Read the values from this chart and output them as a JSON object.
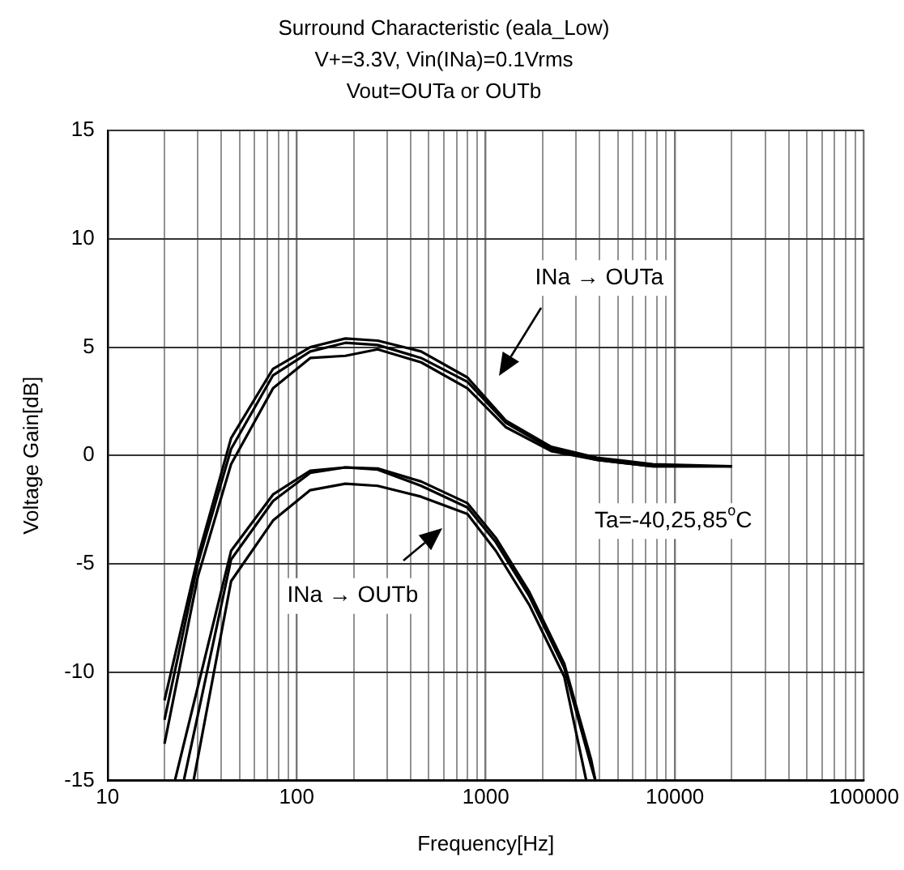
{
  "chart_data": {
    "type": "line",
    "title": "Surround Characteristic (eala_Low)\nV+=3.3V, Vin(INa)=0.1Vrms\nVout=OUTa or OUTb",
    "xlabel": "Frequency[Hz]",
    "ylabel": "Voltage Gain[dB]",
    "log": "x",
    "grid": true,
    "legend": false,
    "marker": "none",
    "line_style": "solid",
    "xlim": [
      10,
      100000
    ],
    "ylim": [
      -15,
      15
    ],
    "yticks": [
      -15,
      -10,
      -5,
      0,
      5,
      10,
      15
    ],
    "xticks": [
      10,
      {
        "value": 20,
        "label": null
      },
      {
        "value": 30,
        "label": null
      },
      {
        "value": 40,
        "label": null
      },
      {
        "value": 50,
        "label": null
      },
      {
        "value": 60,
        "label": null
      },
      {
        "value": 70,
        "label": null
      },
      {
        "value": 80,
        "label": null
      },
      {
        "value": 90,
        "label": null
      },
      100,
      {
        "value": 200,
        "label": null
      },
      {
        "value": 300,
        "label": null
      },
      {
        "value": 400,
        "label": null
      },
      {
        "value": 500,
        "label": null
      },
      {
        "value": 600,
        "label": null
      },
      {
        "value": 700,
        "label": null
      },
      {
        "value": 800,
        "label": null
      },
      {
        "value": 900,
        "label": null
      },
      1000,
      {
        "value": 2000,
        "label": null
      },
      {
        "value": 3000,
        "label": null
      },
      {
        "value": 4000,
        "label": null
      },
      {
        "value": 5000,
        "label": null
      },
      {
        "value": 6000,
        "label": null
      },
      {
        "value": 7000,
        "label": null
      },
      {
        "value": 8000,
        "label": null
      },
      {
        "value": 9000,
        "label": null
      },
      10000,
      {
        "value": 20000,
        "label": null
      },
      {
        "value": 30000,
        "label": null
      },
      {
        "value": 40000,
        "label": null
      },
      {
        "value": 50000,
        "label": null
      },
      {
        "value": 60000,
        "label": null
      },
      {
        "value": 70000,
        "label": null
      },
      {
        "value": 80000,
        "label": null
      },
      {
        "value": 90000,
        "label": null
      },
      100000
    ],
    "series": [
      {
        "color": "#000000",
        "x": [
          20,
          30,
          45,
          75,
          118,
          181,
          268,
          455,
          800,
          1280,
          2220,
          3870,
          7650,
          20000
        ],
        "values": [
          -11.3,
          -4.7,
          0.8,
          4.0,
          5.0,
          5.4,
          5.3,
          4.8,
          3.6,
          1.6,
          0.4,
          -0.1,
          -0.4,
          -0.5
        ]
      },
      {
        "color": "#000000",
        "x": [
          20,
          30,
          45,
          75,
          118,
          181,
          268,
          455,
          800,
          1280,
          2220,
          3870,
          7650,
          20000
        ],
        "values": [
          -12.2,
          -5.0,
          0.3,
          3.7,
          4.8,
          5.2,
          5.1,
          4.5,
          3.4,
          1.5,
          0.3,
          -0.2,
          -0.5,
          -0.5
        ]
      },
      {
        "color": "#000000",
        "x": [
          20,
          30,
          45,
          75,
          118,
          181,
          268,
          455,
          800,
          1280,
          2220,
          3870,
          7650,
          20000
        ],
        "values": [
          -13.3,
          -5.6,
          -0.4,
          3.1,
          4.5,
          4.6,
          4.9,
          4.3,
          3.1,
          1.3,
          0.2,
          -0.2,
          -0.5,
          -0.5
        ]
      },
      {
        "color": "#000000",
        "x": [
          22.7,
          45,
          75,
          118,
          181,
          268,
          455,
          800,
          1130,
          1700,
          2600,
          3600,
          3800
        ],
        "values": [
          -15,
          -4.4,
          -1.8,
          -0.7,
          -0.55,
          -0.6,
          -1.2,
          -2.2,
          -3.8,
          -6.3,
          -9.6,
          -14,
          -15
        ]
      },
      {
        "color": "#000000",
        "x": [
          25.3,
          45,
          75,
          118,
          181,
          268,
          455,
          800,
          1130,
          1700,
          2600,
          3600,
          3800
        ],
        "values": [
          -15,
          -4.8,
          -2.1,
          -0.8,
          -0.55,
          -0.65,
          -1.4,
          -2.4,
          -4.0,
          -6.5,
          -9.8,
          -14.3,
          -15
        ]
      },
      {
        "color": "#000000",
        "x": [
          28.5,
          45,
          75,
          118,
          181,
          268,
          455,
          800,
          1130,
          1700,
          2600,
          3400
        ],
        "values": [
          -15,
          -5.8,
          -3.0,
          -1.6,
          -1.3,
          -1.4,
          -1.9,
          -2.7,
          -4.4,
          -6.9,
          -10.2,
          -15
        ]
      }
    ],
    "annotations": [
      "INa → OUTa",
      "INa → OUTb",
      "Ta=-40,25,85$^{o}$C"
    ]
  }
}
